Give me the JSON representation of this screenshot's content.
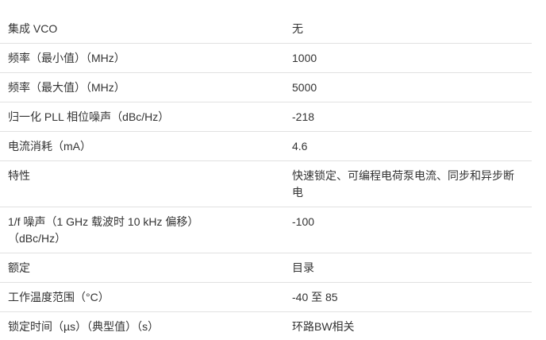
{
  "page": {
    "background_color": "#ffffff",
    "divider_color": "#e1e1e1",
    "text_color": "#333333"
  },
  "spec_table": {
    "rows": [
      {
        "label": "集成 VCO",
        "value": "无"
      },
      {
        "label": "频率（最小值）（MHz）",
        "value": "1000"
      },
      {
        "label": "频率（最大值）（MHz）",
        "value": "5000"
      },
      {
        "label": "归一化 PLL 相位噪声（dBc/Hz）",
        "value": "-218"
      },
      {
        "label": "电流消耗（mA）",
        "value": "4.6"
      },
      {
        "label": "特性",
        "value": "快速锁定、可编程电荷泵电流、同步和异步断\n电"
      },
      {
        "label": "1/f 噪声（1 GHz 载波时 10 kHz 偏移）\n（dBc/Hz）",
        "value": "-100"
      },
      {
        "label": "额定",
        "value": "目录"
      },
      {
        "label": "工作温度范围（°C）",
        "value": "-40 至 85"
      },
      {
        "label": "锁定时间（µs）（典型值）（s）",
        "value": "环路BW相关"
      }
    ]
  }
}
